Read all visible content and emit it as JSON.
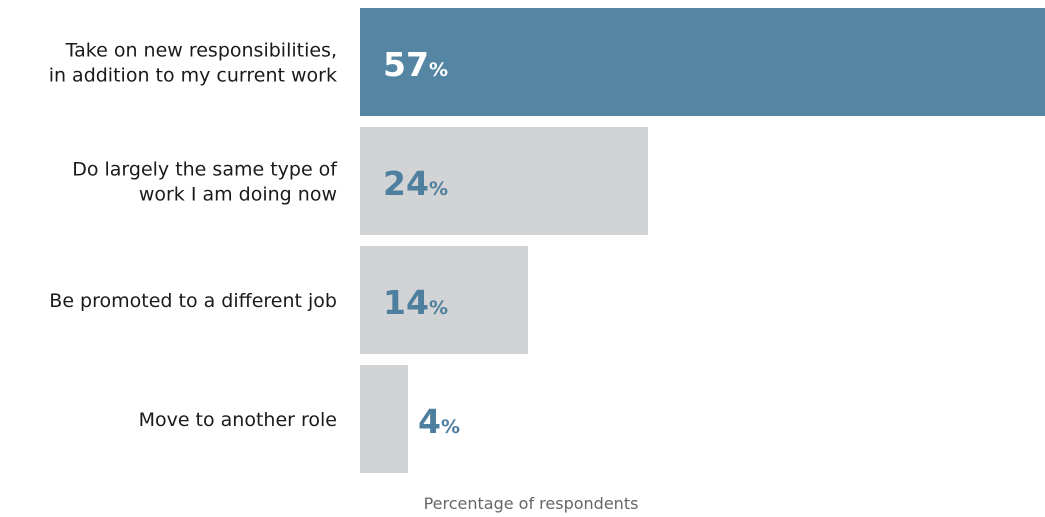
{
  "chart_data": {
    "type": "bar",
    "orientation": "horizontal",
    "categories": [
      [
        "Take on new responsibilities,",
        "in addition to my current work"
      ],
      [
        "Do largely the same type of",
        "work I am doing now"
      ],
      [
        "Be promoted to a different job"
      ],
      [
        "Move to another role"
      ]
    ],
    "values": [
      57,
      24,
      14,
      4
    ],
    "value_suffix": "%",
    "xlabel": "Percentage of respondents",
    "xlim": [
      0,
      57
    ],
    "grid": false,
    "legend": "none",
    "colors": {
      "highlight_bar": "#5486a4",
      "other_bar": "#d1d3d4",
      "highlight_text": "#ffffff",
      "other_text": "#4e7f9e"
    }
  }
}
